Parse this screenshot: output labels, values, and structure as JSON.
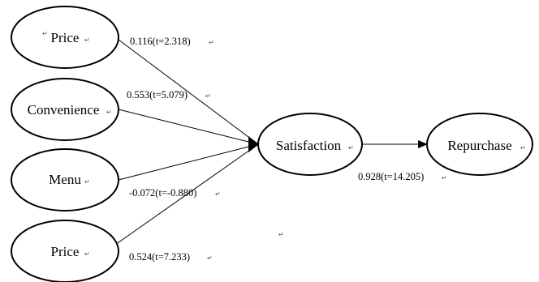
{
  "nodes": {
    "price_top": "Price",
    "convenience": "Convenience",
    "menu": "Menu",
    "price_bottom": "Price",
    "satisfaction": "Satisfaction",
    "repurchase": "Repurchase"
  },
  "paths": {
    "price_top": "0.116(t=2.318)",
    "convenience": "0.553(t=5.079)",
    "menu": "-0.072(t=-0.880)",
    "price_bottom": "0.524(t=7.233)",
    "satisfaction_repurchase": "0.928(t=14.205)"
  },
  "marks": {
    "return": "↵",
    "anchor": "↵"
  }
}
